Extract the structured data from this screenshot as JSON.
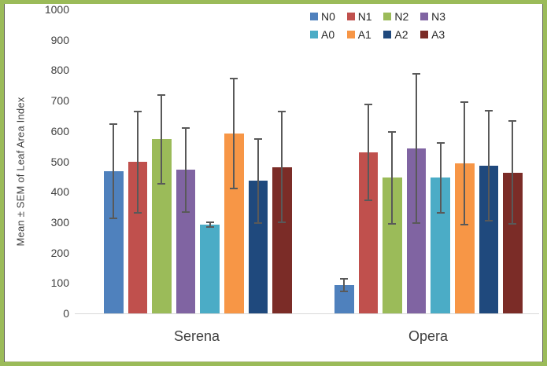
{
  "frame": {
    "border_color": "#9BBB59"
  },
  "chart_data": {
    "type": "bar",
    "title": "",
    "xlabel": "",
    "ylabel": "Mean ± SEM of Leaf Area Index",
    "ylim": [
      0,
      1000
    ],
    "yticks": [
      0,
      100,
      200,
      300,
      400,
      500,
      600,
      700,
      800,
      900,
      1000
    ],
    "grid": false,
    "legend_position": "top-right",
    "legend_rows": [
      [
        "N0",
        "N1",
        "N2",
        "N3"
      ],
      [
        "A0",
        "A1",
        "A2",
        "A3"
      ]
    ],
    "categories": [
      "Serena",
      "Opera"
    ],
    "series": [
      {
        "name": "N0",
        "color": "#4F81BD",
        "values": [
          468,
          93
        ],
        "sem": [
          155,
          20
        ]
      },
      {
        "name": "N1",
        "color": "#C0504D",
        "values": [
          498,
          530
        ],
        "sem": [
          167,
          157
        ]
      },
      {
        "name": "N2",
        "color": "#9BBB59",
        "values": [
          573,
          446
        ],
        "sem": [
          146,
          152
        ]
      },
      {
        "name": "N3",
        "color": "#8064A2",
        "values": [
          472,
          542
        ],
        "sem": [
          139,
          245
        ]
      },
      {
        "name": "A0",
        "color": "#4BACC6",
        "values": [
          293,
          446
        ],
        "sem": [
          8,
          116
        ]
      },
      {
        "name": "A1",
        "color": "#F79646",
        "values": [
          592,
          494
        ],
        "sem": [
          180,
          201
        ]
      },
      {
        "name": "A2",
        "color": "#1F497D",
        "values": [
          436,
          486
        ],
        "sem": [
          138,
          181
        ]
      },
      {
        "name": "A3",
        "color": "#7B2C27",
        "values": [
          481,
          463
        ],
        "sem": [
          182,
          169
        ]
      }
    ],
    "error_bar_color": "#595959",
    "axis_line_color": "#D9D9D9",
    "tick_label_color": "#404040"
  }
}
